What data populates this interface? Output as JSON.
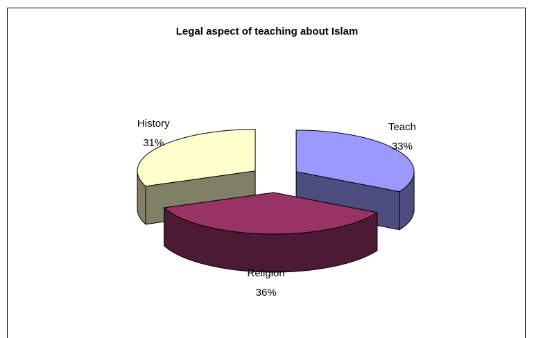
{
  "chart_data": {
    "type": "pie",
    "title": "Legal aspect of teaching about Islam",
    "categories": [
      "Teach",
      "Religion",
      "History"
    ],
    "values": [
      33,
      36,
      31
    ],
    "value_labels": [
      "33%",
      "36%",
      "31%"
    ],
    "colors": [
      "#9999ff",
      "#993366",
      "#ffffcc"
    ]
  }
}
